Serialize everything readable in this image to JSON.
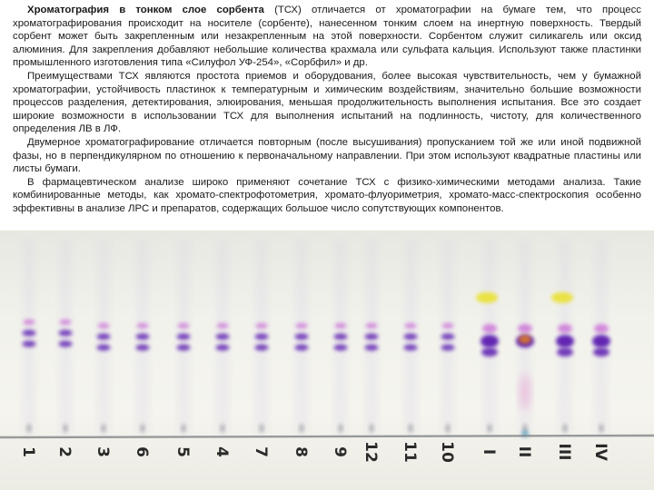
{
  "document": {
    "p1_bold": "Хроматография в тонком слое сорбента",
    "p1_rest": " (ТСХ) отличается от хроматографии на бумаге тем, что процесс хроматографирования происходит на носителе (сорбенте), нанесенном тонким слоем на инертную поверхность. Твердый сорбент может быть закрепленным или незакрепленным на этой поверхности. Сорбентом служит силикагель или оксид алюминия. Для закрепления добавляют небольшие количества крахмала или сульфата кальция. Используют также пластинки промышленного изготовления типа «Силуфол УФ-254», «Сорбфил» и др.",
    "p2": "Преимуществами ТСХ являются простота приемов и оборудования, более высокая чувствительность, чем у бумажной хроматографии, устойчивость пластинок к температурным и химическим воздействиям, значительно большие возможности процессов разделения, детектирования, элюирования, меньшая продолжительность выполнения испытания. Все это создает широкие возможности в использовании ТСХ для выполнения испытаний на подлинность, чистоту, для количественного определения ЛВ в ЛФ.",
    "p3": "Двумерное хроматографирование отличается повторным (после высушивания) пропусканием той же или иной подвижной фазы, но в перпендикулярном по отношению к первоначальному направлении. При этом используют квадратные пластины или листы бумаги.",
    "p4": "В фармацевтическом анализе широко применяют сочетание ТСХ с физико-химическими методами анализа. Такие комбинированные методы, как хромато-спектрофотометрия, хромато-флуориметрия, хромато-масс-спектроскопия особенно эффективны в анализе ЛРС и препаратов, содержащих большое число сопутствующих компонентов."
  },
  "plate": {
    "lane_labels": [
      "1",
      "2",
      "3",
      "6",
      "5",
      "4",
      "7",
      "8",
      "9",
      "12",
      "11",
      "10",
      "I",
      "II",
      "III",
      "IV"
    ],
    "colors": {
      "violet": "#5b1fb0",
      "magenta": "#c04ad0",
      "yellow": "#eae23a",
      "orange": "#d9792a",
      "pink": "#e8a6d6",
      "start_line": "#6b6e72"
    }
  }
}
